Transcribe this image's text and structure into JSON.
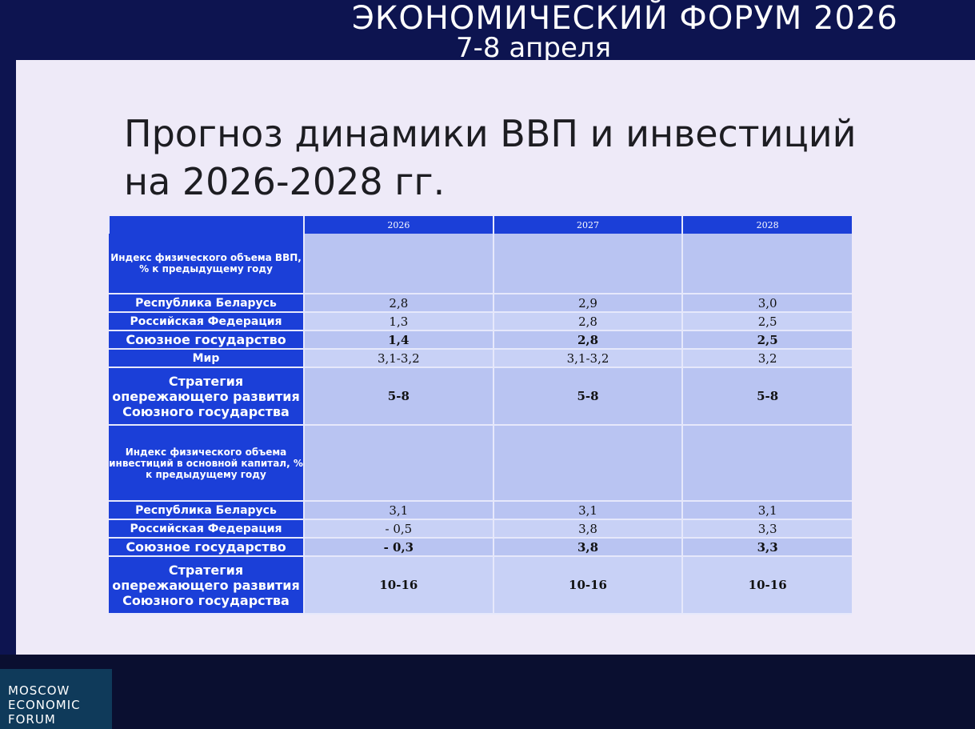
{
  "header": {
    "forum": "ЭКОНОМИЧЕСКИЙ ФОРУМ 2026",
    "dates": "7-8 апреля"
  },
  "slide": {
    "title_line1": "Прогноз динамики ВВП и инвестиций",
    "title_line2": "на 2026-2028 гг."
  },
  "table": {
    "columns": [
      "2026",
      "2027",
      "2028"
    ],
    "sections": [
      {
        "title": "Индекс физического объема ВВП, % к предыдущему году",
        "rows": [
          [
            "Республика Беларусь",
            "2,8",
            "2,9",
            "3,0"
          ],
          [
            "Российская Федерация",
            "1,3",
            "2,8",
            "2,5"
          ],
          [
            "Союзное государство",
            "1,4",
            "2,8",
            "2,5"
          ],
          [
            "Мир",
            "3,1-3,2",
            "3,1-3,2",
            "3,2"
          ],
          [
            "Стратегия опережающего развития Союзного государства",
            "5-8",
            "5-8",
            "5-8"
          ]
        ]
      },
      {
        "title": "Индекс физического объема инвестиций в основной капитал, % к предыдущему году",
        "rows": [
          [
            "Республика Беларусь",
            "3,1",
            "3,1",
            "3,1"
          ],
          [
            "Российская Федерация",
            "- 0,5",
            "3,8",
            "3,3"
          ],
          [
            "Союзное государство",
            "- 0,3",
            "3,8",
            "3,3"
          ],
          [
            "Стратегия опережающего развития Союзного государства",
            "10-16",
            "10-16",
            "10-16"
          ]
        ]
      }
    ]
  },
  "footer": {
    "logo": "MOSCOW ECONOMIC FORUM"
  }
}
